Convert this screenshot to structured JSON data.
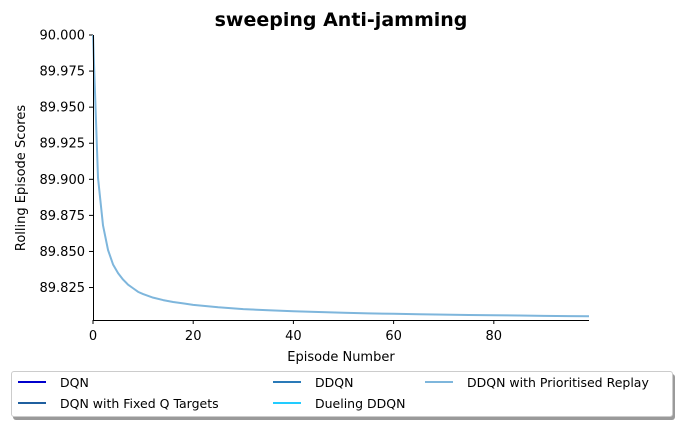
{
  "chart_data": {
    "type": "line",
    "title": "sweeping Anti-jamming",
    "xlabel": "Episode Number",
    "ylabel": "Rolling Episode Scores",
    "xlim": [
      0,
      99
    ],
    "ylim": [
      89.8025,
      90.0
    ],
    "xticks": [
      "0",
      "20",
      "40",
      "60",
      "80"
    ],
    "yticks": [
      "89.825",
      "89.850",
      "89.875",
      "89.900",
      "89.925",
      "89.950",
      "89.975",
      "90.000"
    ],
    "grid": false,
    "legend_position": "below",
    "series": [
      {
        "name": "DQN",
        "color": "#0000cc",
        "points": []
      },
      {
        "name": "DQN with Fixed Q Targets",
        "color": "#1f5f9f",
        "points": []
      },
      {
        "name": "DDQN",
        "color": "#2a7ab8",
        "points": []
      },
      {
        "name": "Dueling DDQN",
        "color": "#22ccff",
        "points": []
      },
      {
        "name": "DDQN with Prioritised Replay",
        "color": "#7eb6dc",
        "points": [
          [
            0,
            90.0
          ],
          [
            1,
            89.901
          ],
          [
            2,
            89.868
          ],
          [
            3,
            89.851
          ],
          [
            4,
            89.841
          ],
          [
            5,
            89.835
          ],
          [
            6,
            89.8305
          ],
          [
            7,
            89.827
          ],
          [
            8,
            89.8245
          ],
          [
            9,
            89.822
          ],
          [
            10,
            89.8205
          ],
          [
            12,
            89.818
          ],
          [
            14,
            89.8163
          ],
          [
            16,
            89.815
          ],
          [
            18,
            89.814
          ],
          [
            20,
            89.813
          ],
          [
            25,
            89.8113
          ],
          [
            30,
            89.81
          ],
          [
            35,
            89.8093
          ],
          [
            40,
            89.8086
          ],
          [
            45,
            89.808
          ],
          [
            50,
            89.8075
          ],
          [
            55,
            89.8071
          ],
          [
            60,
            89.8068
          ],
          [
            65,
            89.8065
          ],
          [
            70,
            89.8062
          ],
          [
            75,
            89.806
          ],
          [
            80,
            89.8058
          ],
          [
            85,
            89.8056
          ],
          [
            90,
            89.8054
          ],
          [
            95,
            89.8052
          ],
          [
            99,
            89.8051
          ]
        ]
      }
    ]
  }
}
